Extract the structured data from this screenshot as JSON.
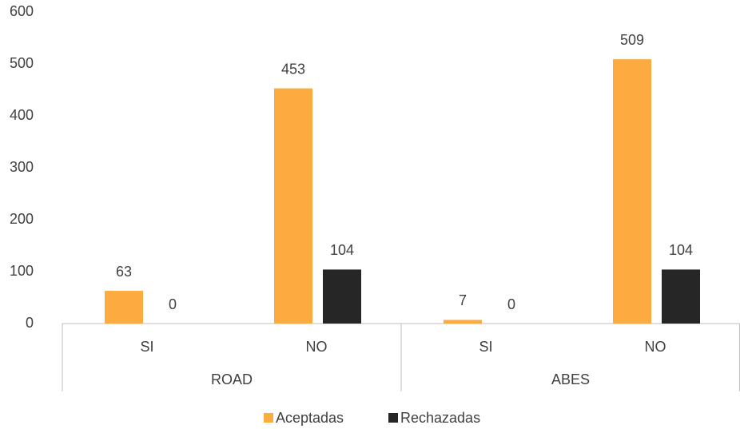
{
  "chart_data": {
    "type": "bar",
    "categories": [
      "SI",
      "NO",
      "SI",
      "NO"
    ],
    "groups": [
      "ROAD",
      "ABES"
    ],
    "series": [
      {
        "name": "Aceptadas",
        "color": "#fbab3f",
        "values": [
          63,
          453,
          7,
          509
        ]
      },
      {
        "name": "Rechazadas",
        "color": "#262626",
        "values": [
          0,
          104,
          0,
          104
        ]
      }
    ],
    "ylim": [
      0,
      600
    ],
    "yticks": [
      0,
      100,
      200,
      300,
      400,
      500,
      600
    ],
    "grid": false,
    "legend": "bottom"
  }
}
